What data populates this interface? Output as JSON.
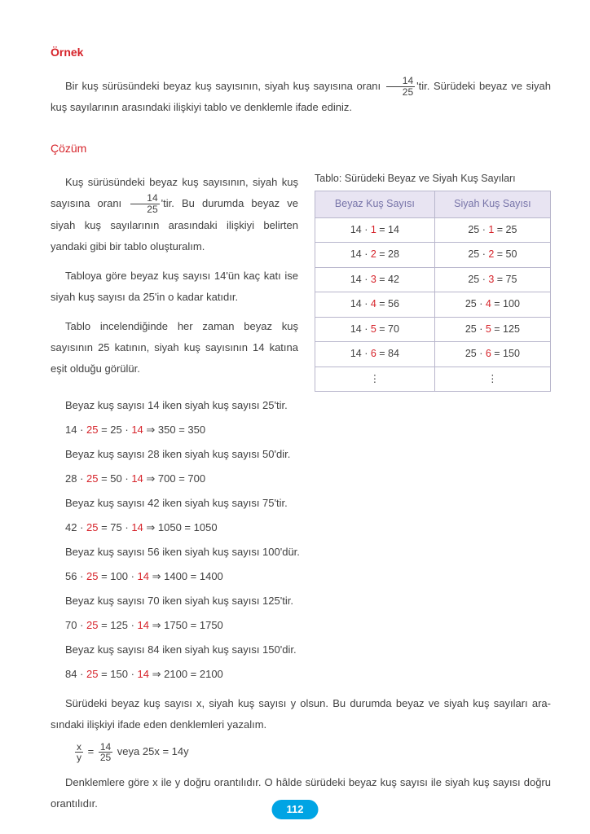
{
  "heading_example": "Örnek",
  "problem": {
    "pre": "Bir kuş sürüsündeki beyaz kuş sayısının, siyah kuş sayısına oranı ",
    "frac_num": "14",
    "frac_den": "25",
    "post": "'tir. Sürüdeki beyaz ve siyah kuş sayılarının arasındaki ilişkiyi tablo ve denklemle ifade ediniz."
  },
  "heading_solution": "Çözüm",
  "left": {
    "p1_pre": "Kuş sürüsündeki beyaz kuş sayısının, siyah kuş sa­yısına oranı ",
    "p1_frac_num": "14",
    "p1_frac_den": "25",
    "p1_post": "'tir. Bu durumda beyaz ve siyah kuş sa­yılarının arasındaki ilişkiyi belirten yandaki gibi bir tablo oluşturalım.",
    "p2": "Tabloya göre beyaz kuş sayısı 14'ün kaç katı ise si­yah kuş sayısı da 25'in o kadar katıdır.",
    "p3": "Tablo incelendiğinde her zaman beyaz kuş sayısının 25 katının, siyah kuş sayısının 14 katına eşit olduğu görülür."
  },
  "table": {
    "caption": "Tablo: Sürüdeki Beyaz ve Siyah Kuş Sayıları",
    "col1": "Beyaz Kuş Sayısı",
    "col2": "Siyah Kuş Sayısı",
    "rows": [
      {
        "a1": "14 · ",
        "m1": "1",
        "r1": " = 14",
        "a2": "25 · ",
        "m2": "1",
        "r2": " = 25"
      },
      {
        "a1": "14 · ",
        "m1": "2",
        "r1": " = 28",
        "a2": "25 · ",
        "m2": "2",
        "r2": " = 50"
      },
      {
        "a1": "14 · ",
        "m1": "3",
        "r1": " = 42",
        "a2": "25 · ",
        "m2": "3",
        "r2": " = 75"
      },
      {
        "a1": "14 · ",
        "m1": "4",
        "r1": " = 56",
        "a2": "25 · ",
        "m2": "4",
        "r2": " = 100"
      },
      {
        "a1": "14 · ",
        "m1": "5",
        "r1": " = 70",
        "a2": "25 · ",
        "m2": "5",
        "r2": " = 125"
      },
      {
        "a1": "14 · ",
        "m1": "6",
        "r1": " = 84",
        "a2": "25 · ",
        "m2": "6",
        "r2": " = 150"
      }
    ],
    "vdots": "⋮"
  },
  "lines": [
    {
      "t": "Beyaz kuş sayısı 14 iken siyah kuş sayısı 25'tir."
    },
    {
      "eq_a": "14 · ",
      "eq_m1": "25",
      "eq_b": " = 25 · ",
      "eq_m2": "14",
      "eq_c": "  ⇒ 350 = 350"
    },
    {
      "t": "Beyaz kuş sayısı 28 iken siyah kuş sayısı 50'dir."
    },
    {
      "eq_a": "28 · ",
      "eq_m1": "25",
      "eq_b": " = 50 · ",
      "eq_m2": "14",
      "eq_c": "  ⇒ 700 = 700"
    },
    {
      "t": "Beyaz kuş sayısı 42 iken siyah kuş sayısı 75'tir."
    },
    {
      "eq_a": "42 · ",
      "eq_m1": "25",
      "eq_b": " = 75 · ",
      "eq_m2": "14",
      "eq_c": "  ⇒ 1050 = 1050"
    },
    {
      "t": "Beyaz kuş sayısı 56 iken siyah kuş sayısı 100'dür."
    },
    {
      "eq_a": "56 · ",
      "eq_m1": "25",
      "eq_b": " = 100 · ",
      "eq_m2": "14",
      "eq_c": " ⇒ 1400 = 1400"
    },
    {
      "t": "Beyaz kuş sayısı 70 iken siyah kuş sayısı 125'tir."
    },
    {
      "eq_a": "70 · ",
      "eq_m1": "25",
      "eq_b": " = 125 · ",
      "eq_m2": "14",
      "eq_c": " ⇒ 1750 = 1750"
    },
    {
      "t": "Beyaz kuş sayısı 84 iken siyah kuş sayısı 150'dir."
    },
    {
      "eq_a": "84 · ",
      "eq_m1": "25",
      "eq_b": " = 150 · ",
      "eq_m2": "14",
      "eq_c": " ⇒ 2100 = 2100"
    }
  ],
  "final": {
    "p1": "Sürüdeki beyaz kuş sayısı x, siyah kuş sayısı y olsun. Bu durumda beyaz ve siyah kuş sayıları ara­sındaki ilişkiyi ifade eden denklemleri yazalım.",
    "frac1_num": "x",
    "frac1_den": "y",
    "eq_mid": " = ",
    "frac2_num": "14",
    "frac2_den": "25",
    "tail": " veya 25x = 14y",
    "p2": "Denklemlere göre x ile y doğru orantılıdır. O hâlde sürüdeki beyaz kuş sayısı ile siyah kuş sayısı doğru orantılıdır."
  },
  "page_number": "112",
  "colors": {
    "accent_red": "#d6232a",
    "th_bg": "#e8e4f2",
    "th_text": "#7673a8",
    "border": "#b8b6cc",
    "badge_bg": "#00a4e4"
  }
}
